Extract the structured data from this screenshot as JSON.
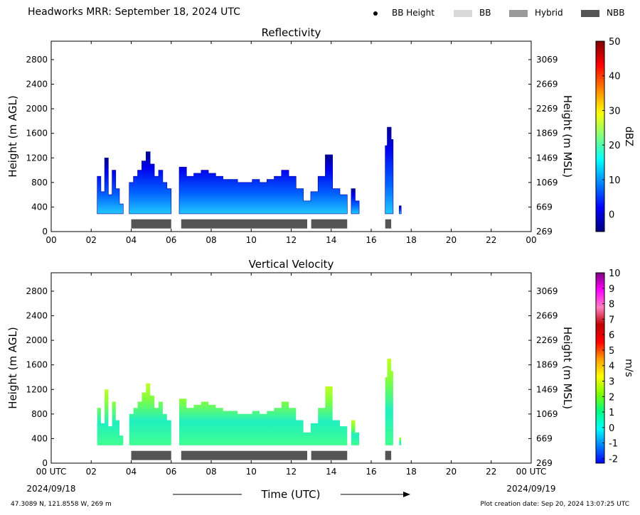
{
  "header": {
    "title": "Headworks MRR:  September 18, 2024 UTC",
    "legend": [
      {
        "label": "BB Height",
        "kind": "dot",
        "color": "#000000"
      },
      {
        "label": "BB",
        "kind": "box",
        "color": "#d9d9d9"
      },
      {
        "label": "Hybrid",
        "kind": "box",
        "color": "#9a9a9a"
      },
      {
        "label": "NBB",
        "kind": "box",
        "color": "#555555"
      }
    ]
  },
  "chart_data": [
    {
      "type": "heatmap",
      "title": "Reflectivity",
      "ylabel": "Height (m AGL)",
      "y2label": "Height (m MSL)",
      "xlim": [
        0,
        24
      ],
      "ylim": [
        0,
        3100
      ],
      "x_ticks": [
        "00",
        "02",
        "04",
        "06",
        "08",
        "10",
        "12",
        "14",
        "16",
        "18",
        "20",
        "22",
        "00"
      ],
      "y_ticks": [
        0,
        400,
        800,
        1200,
        1600,
        2000,
        2400,
        2800
      ],
      "y2_ticks": [
        269,
        669,
        1069,
        1469,
        1869,
        2269,
        2669,
        3069
      ],
      "colorbar": {
        "label": "dBZ",
        "ticks": [
          0,
          10,
          20,
          30,
          40,
          50
        ],
        "min": -5,
        "max": 50,
        "colors": [
          "#00007f",
          "#0000ff",
          "#0080ff",
          "#00ffff",
          "#80ff80",
          "#ffff00",
          "#ff8000",
          "#ff0000",
          "#7f0000"
        ]
      },
      "echo_base_m": 290,
      "echo_tops": [
        {
          "start": 2.3,
          "end": 3.6,
          "tops": [
            900,
            650,
            1200,
            600,
            1000,
            700,
            450
          ]
        },
        {
          "start": 3.9,
          "end": 6.0,
          "tops": [
            800,
            900,
            1000,
            1150,
            1300,
            1100,
            900,
            1000,
            800,
            700
          ]
        },
        {
          "start": 6.4,
          "end": 14.8,
          "tops": [
            1050,
            900,
            950,
            1000,
            950,
            900,
            850,
            850,
            800,
            800,
            850,
            800,
            850,
            900,
            1000,
            900,
            700,
            500,
            650,
            900,
            1250,
            700,
            600
          ]
        },
        {
          "start": 15.0,
          "end": 15.4,
          "tops": [
            700,
            500
          ]
        },
        {
          "start": 16.7,
          "end": 17.1,
          "tops": [
            1400,
            1700,
            1700,
            1500
          ]
        },
        {
          "start": 17.4,
          "end": 17.5,
          "tops": [
            420
          ]
        }
      ],
      "bb_type_bars": [
        {
          "type": "NBB",
          "start": 4.0,
          "end": 6.0
        },
        {
          "type": "NBB",
          "start": 6.5,
          "end": 12.8
        },
        {
          "type": "NBB",
          "start": 13.0,
          "end": 14.8
        },
        {
          "type": "NBB",
          "start": 16.7,
          "end": 17.0
        }
      ]
    },
    {
      "type": "heatmap",
      "title": "Vertical Velocity",
      "ylabel": "Height (m AGL)",
      "y2label": "Height (m MSL)",
      "xlim": [
        0,
        24
      ],
      "ylim": [
        0,
        3100
      ],
      "x_ticks": [
        "00 UTC",
        "02",
        "04",
        "06",
        "08",
        "10",
        "12",
        "14",
        "16",
        "18",
        "20",
        "22",
        "00 UTC"
      ],
      "y_ticks": [
        0,
        400,
        800,
        1200,
        1600,
        2000,
        2400,
        2800
      ],
      "y2_ticks": [
        269,
        669,
        1069,
        1469,
        1869,
        2269,
        2669,
        3069
      ],
      "colorbar": {
        "label": "m/s",
        "ticks": [
          -2,
          -1,
          0,
          1,
          2,
          3,
          4,
          5,
          6,
          7,
          8,
          9,
          10
        ],
        "min": -2.3,
        "max": 10,
        "colors": [
          "#0000ff",
          "#0080ff",
          "#00ffff",
          "#00ff80",
          "#80ff00",
          "#ffff00",
          "#ffa000",
          "#ff0000",
          "#c00000",
          "#ff80c0",
          "#ff00ff",
          "#800080"
        ]
      },
      "echo_base_m": 290,
      "echo_tops": [
        {
          "start": 2.3,
          "end": 3.6,
          "tops": [
            900,
            650,
            1200,
            600,
            1000,
            700,
            450
          ]
        },
        {
          "start": 3.9,
          "end": 6.0,
          "tops": [
            800,
            900,
            1000,
            1150,
            1300,
            1100,
            900,
            1000,
            800,
            700
          ]
        },
        {
          "start": 6.4,
          "end": 14.8,
          "tops": [
            1050,
            900,
            950,
            1000,
            950,
            900,
            850,
            850,
            800,
            800,
            850,
            800,
            850,
            900,
            1000,
            900,
            700,
            500,
            650,
            900,
            1250,
            700,
            600
          ]
        },
        {
          "start": 15.0,
          "end": 15.4,
          "tops": [
            700,
            500
          ]
        },
        {
          "start": 16.7,
          "end": 17.1,
          "tops": [
            1400,
            1700,
            1700,
            1500
          ]
        },
        {
          "start": 17.4,
          "end": 17.5,
          "tops": [
            420
          ]
        }
      ],
      "bb_type_bars": [
        {
          "type": "NBB",
          "start": 4.0,
          "end": 6.0
        },
        {
          "type": "NBB",
          "start": 6.5,
          "end": 12.8
        },
        {
          "type": "NBB",
          "start": 13.0,
          "end": 14.8
        },
        {
          "type": "NBB",
          "start": 16.7,
          "end": 17.0
        }
      ],
      "xlabel": "Time (UTC)",
      "start_date": "2024/09/18",
      "end_date": "2024/09/19"
    }
  ],
  "footer": {
    "location": "47.3089 N, 121.8558 W, 269 m",
    "creation": "Plot creation date: Sep 20, 2024 13:07:25 UTC"
  }
}
